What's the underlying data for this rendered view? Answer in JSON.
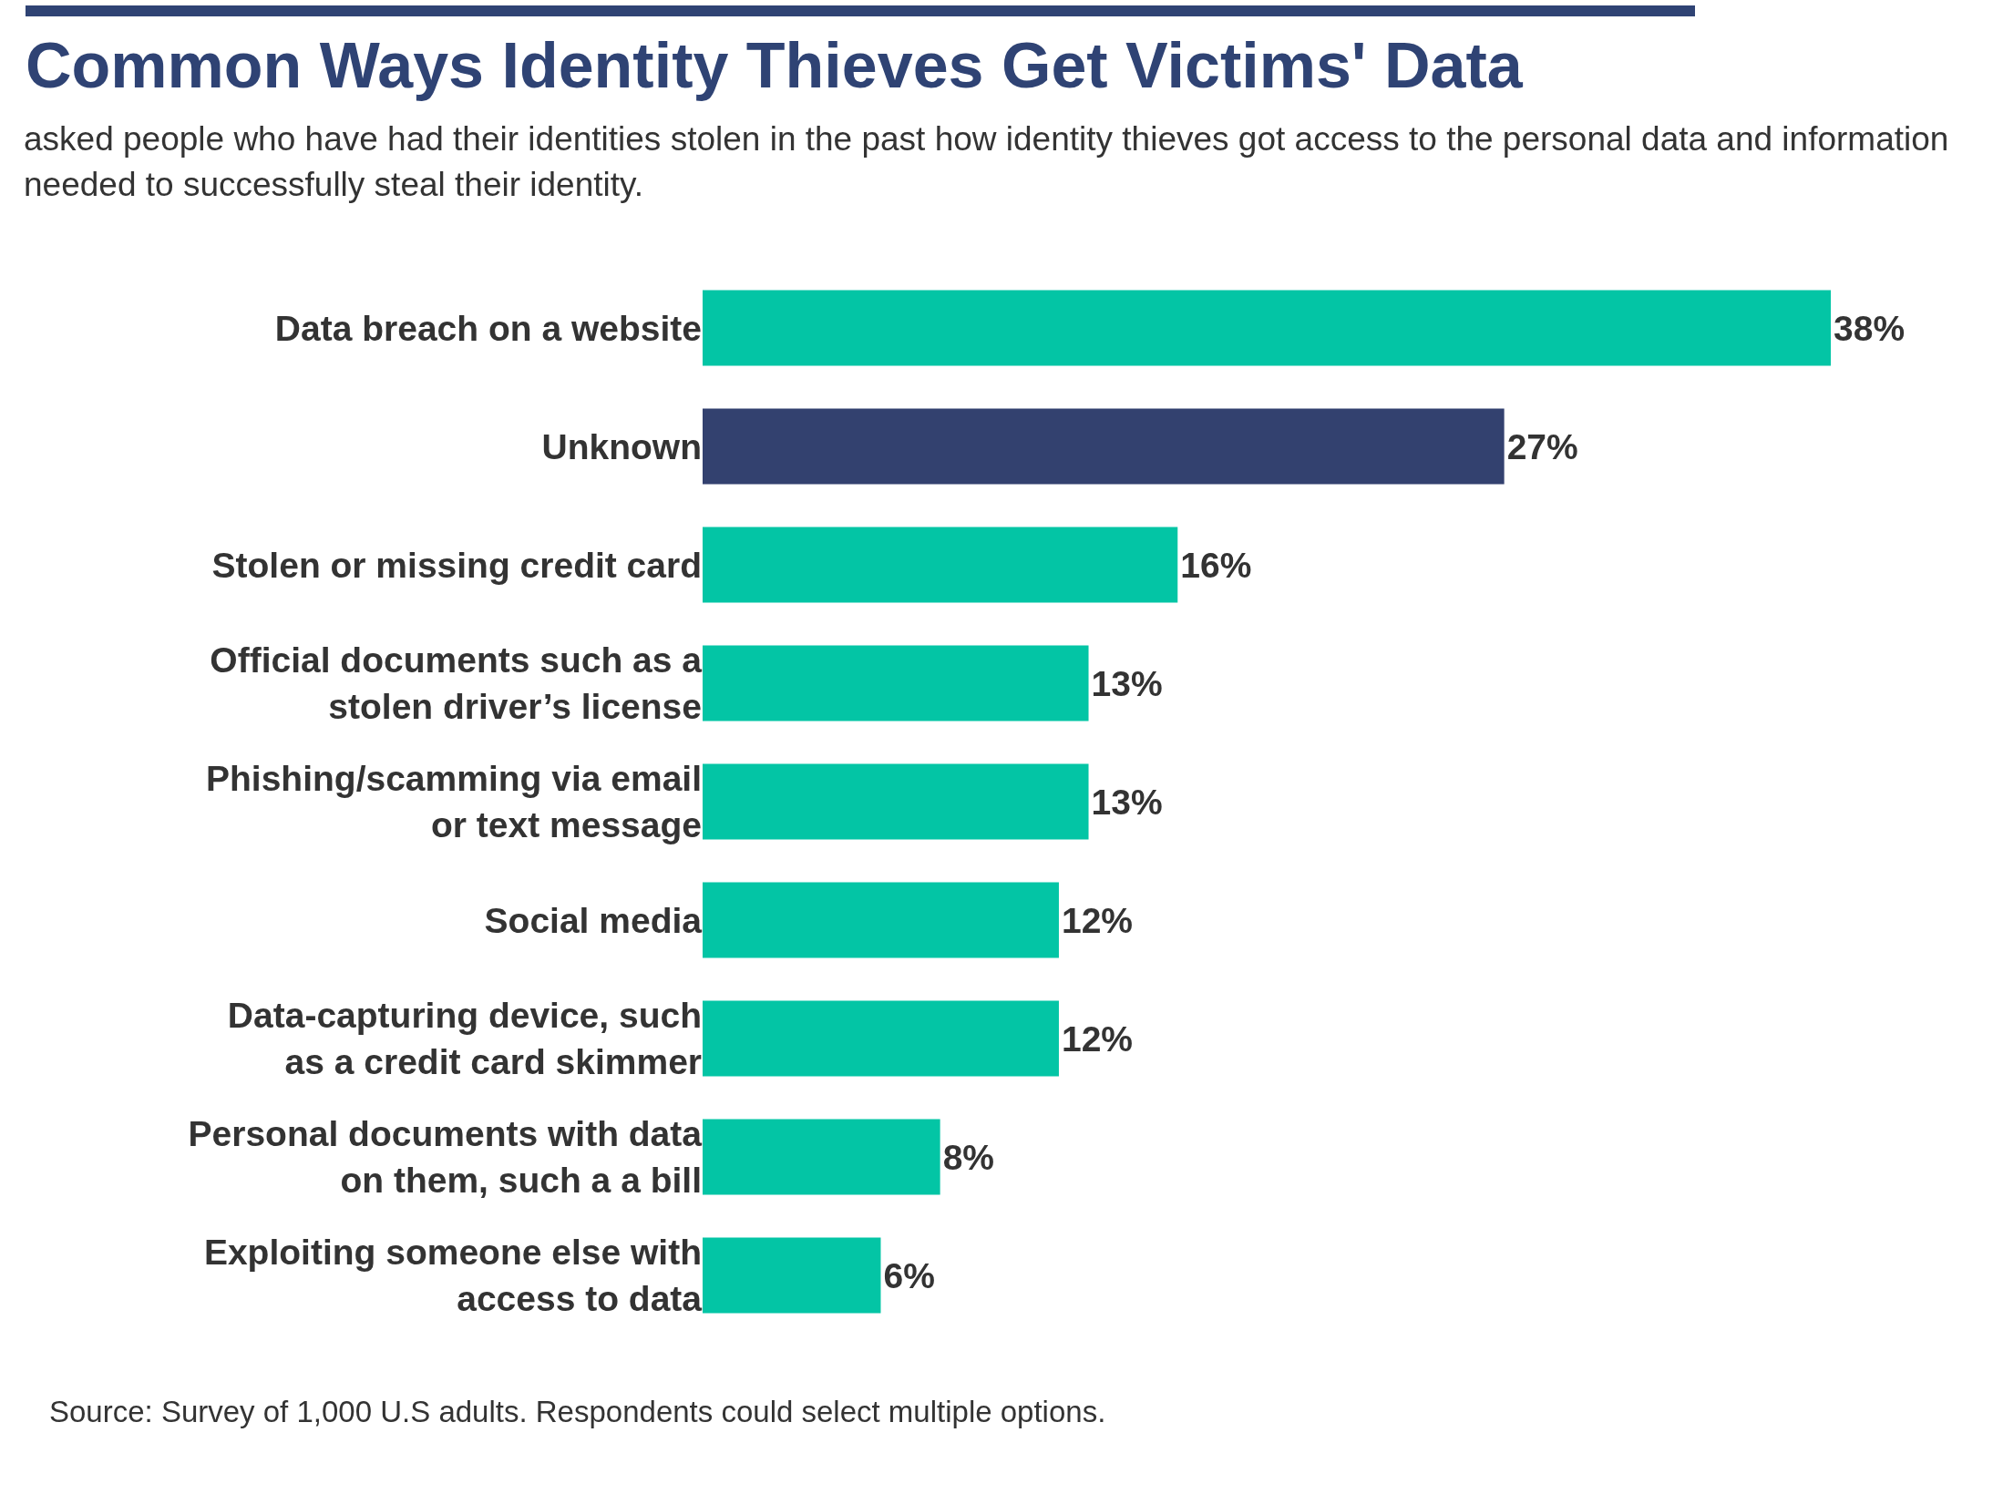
{
  "chart_data": {
    "type": "bar",
    "orientation": "horizontal",
    "title": "Common Ways Identity Thieves Get Victims' Data",
    "subtitle": "asked people who have had their identities stolen in the past how identity thieves got access to the personal data and information needed to successfully steal their identity.",
    "categories": [
      "Data breach on a website",
      "Unknown",
      "Stolen or missing credit card",
      "Official documents such as a\nstolen driver’s license",
      "Phishing/scamming via email\nor text message",
      "Social media",
      "Data-capturing device, such\nas a credit card skimmer",
      "Personal documents with data\non them, such a a bill",
      "Exploiting someone else with\naccess to data"
    ],
    "values": [
      38,
      27,
      16,
      13,
      13,
      12,
      12,
      8,
      6
    ],
    "value_labels": [
      "38%",
      "27%",
      "16%",
      "13%",
      "13%",
      "12%",
      "12%",
      "8%",
      "6%"
    ],
    "colors": [
      "#03c5a5",
      "#33416f",
      "#03c5a5",
      "#03c5a5",
      "#03c5a5",
      "#03c5a5",
      "#03c5a5",
      "#03c5a5",
      "#03c5a5"
    ],
    "annotations": [
      "Source: Survey of 1,000 U.S adults. Respondents could select multiple options."
    ],
    "grid": false,
    "legend": false
  }
}
